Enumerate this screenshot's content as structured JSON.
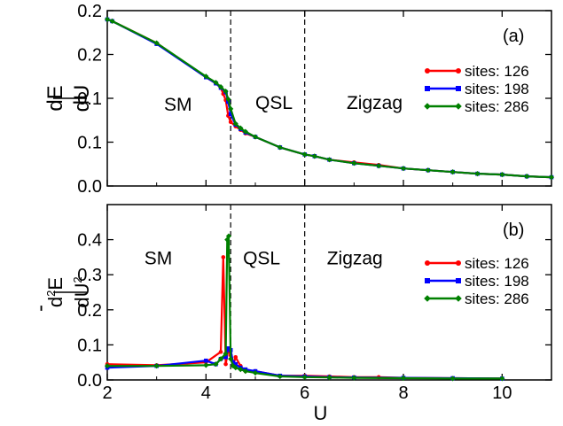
{
  "chart_data": [
    {
      "type": "line",
      "panel_label": "(a)",
      "ylabel_num": "dE",
      "ylabel_den": "dU",
      "xlim": [
        2,
        11
      ],
      "ylim": [
        0.0,
        0.2
      ],
      "yticks": [
        {
          "v": 0.0,
          "label": "0.0"
        },
        {
          "v": 0.05,
          "label": "0.1"
        },
        {
          "v": 0.1,
          "label": "0.1"
        },
        {
          "v": 0.15,
          "label": "0.2"
        },
        {
          "v": 0.2,
          "label": "0.2"
        }
      ],
      "vlines": [
        4.5,
        6.0
      ],
      "phase_labels": [
        {
          "text": "SM",
          "x": 3.15,
          "y": 0.086
        },
        {
          "text": "QSL",
          "x": 5.0,
          "y": 0.088
        },
        {
          "text": "Zigzag",
          "x": 6.85,
          "y": 0.088
        }
      ],
      "legend": "right",
      "series": [
        {
          "name": "sites: 126",
          "color": "#ff0000",
          "marker": "circle",
          "x": [
            2.0,
            2.1,
            3.0,
            4.0,
            4.2,
            4.3,
            4.35,
            4.4,
            4.45,
            4.5,
            4.6,
            4.7,
            4.8,
            5.0,
            5.5,
            6.0,
            6.2,
            6.5,
            7.0,
            7.5,
            8.0,
            8.5,
            9.0,
            9.5,
            10.0,
            10.5,
            11.0
          ],
          "y": [
            0.19,
            0.188,
            0.163,
            0.124,
            0.117,
            0.112,
            0.105,
            0.098,
            0.08,
            0.073,
            0.068,
            0.064,
            0.06,
            0.056,
            0.044,
            0.036,
            0.034,
            0.03,
            0.027,
            0.024,
            0.02,
            0.018,
            0.016,
            0.014,
            0.013,
            0.011,
            0.01
          ]
        },
        {
          "name": "sites: 198",
          "color": "#0000ff",
          "marker": "square",
          "x": [
            2.0,
            2.1,
            3.0,
            4.0,
            4.2,
            4.3,
            4.4,
            4.45,
            4.5,
            4.6,
            4.7,
            4.8,
            5.0,
            5.5,
            6.0,
            6.2,
            6.5,
            7.0,
            7.5,
            8.0,
            8.5,
            9.0,
            9.5,
            10.0,
            10.5,
            11.0
          ],
          "y": [
            0.19,
            0.188,
            0.162,
            0.124,
            0.117,
            0.112,
            0.107,
            0.096,
            0.082,
            0.07,
            0.065,
            0.061,
            0.056,
            0.044,
            0.036,
            0.034,
            0.03,
            0.026,
            0.023,
            0.02,
            0.018,
            0.016,
            0.014,
            0.013,
            0.011,
            0.01
          ]
        },
        {
          "name": "sites: 286",
          "color": "#008000",
          "marker": "diamond",
          "x": [
            2.0,
            2.1,
            3.0,
            4.0,
            4.2,
            4.3,
            4.4,
            4.45,
            4.5,
            4.6,
            4.7,
            4.8,
            5.0,
            5.5,
            6.0,
            6.2,
            6.5,
            7.0,
            7.5,
            8.0,
            8.5,
            9.0,
            9.5,
            10.0,
            10.5,
            11.0
          ],
          "y": [
            0.19,
            0.188,
            0.163,
            0.125,
            0.118,
            0.113,
            0.108,
            0.099,
            0.088,
            0.071,
            0.066,
            0.062,
            0.056,
            0.044,
            0.036,
            0.034,
            0.03,
            0.026,
            0.023,
            0.02,
            0.018,
            0.016,
            0.014,
            0.013,
            0.011,
            0.01
          ]
        }
      ]
    },
    {
      "type": "line",
      "panel_label": "(b)",
      "ylabel_prefix": "-",
      "ylabel_num": "d",
      "ylabel_num_sup": "2",
      "ylabel_num_tail": "E",
      "ylabel_den": "dU",
      "ylabel_den_sup": "2",
      "xlabel": "U",
      "xlim": [
        2,
        11
      ],
      "ylim": [
        0.0,
        0.5
      ],
      "xticks": [
        2,
        4,
        6,
        8,
        10
      ],
      "yticks": [
        {
          "v": 0.0,
          "label": "0.0"
        },
        {
          "v": 0.1,
          "label": "0.1"
        },
        {
          "v": 0.2,
          "label": "0.2"
        },
        {
          "v": 0.3,
          "label": "0.3"
        },
        {
          "v": 0.4,
          "label": "0.4"
        }
      ],
      "vlines": [
        4.5,
        6.0
      ],
      "phase_labels": [
        {
          "text": "SM",
          "x": 2.75,
          "y": 0.33
        },
        {
          "text": "QSL",
          "x": 4.75,
          "y": 0.33
        },
        {
          "text": "Zigzag",
          "x": 6.45,
          "y": 0.33
        }
      ],
      "legend": "right",
      "series": [
        {
          "name": "sites: 126",
          "color": "#ff0000",
          "marker": "circle",
          "x": [
            2.0,
            3.0,
            4.0,
            4.3,
            4.35,
            4.4,
            4.45,
            4.5,
            4.55,
            4.6,
            4.7,
            4.8,
            5.0,
            5.5,
            6.0,
            6.5,
            7.0,
            7.5,
            8.0,
            9.0,
            10.0
          ],
          "y": [
            0.045,
            0.042,
            0.05,
            0.08,
            0.35,
            0.045,
            0.085,
            0.07,
            0.04,
            0.065,
            0.04,
            0.025,
            0.025,
            0.012,
            0.012,
            0.01,
            0.008,
            0.008,
            0.006,
            0.005,
            0.004
          ]
        },
        {
          "name": "sites: 198",
          "color": "#0000ff",
          "marker": "square",
          "x": [
            2.0,
            3.0,
            4.0,
            4.2,
            4.3,
            4.4,
            4.45,
            4.5,
            4.55,
            4.6,
            4.7,
            4.8,
            5.0,
            5.5,
            6.0,
            6.5,
            7.0,
            8.0,
            9.0,
            10.0
          ],
          "y": [
            0.035,
            0.04,
            0.055,
            0.045,
            0.06,
            0.065,
            0.09,
            0.085,
            0.05,
            0.045,
            0.035,
            0.03,
            0.025,
            0.012,
            0.01,
            0.008,
            0.007,
            0.006,
            0.005,
            0.004
          ]
        },
        {
          "name": "sites: 286",
          "color": "#008000",
          "marker": "diamond",
          "x": [
            2.0,
            3.0,
            4.0,
            4.2,
            4.3,
            4.4,
            4.43,
            4.46,
            4.5,
            4.55,
            4.6,
            4.7,
            4.8,
            5.0,
            5.5,
            6.0,
            6.5,
            7.0,
            8.0,
            9.0,
            10.0
          ],
          "y": [
            0.04,
            0.04,
            0.042,
            0.045,
            0.06,
            0.075,
            0.4,
            0.41,
            0.06,
            0.04,
            0.035,
            0.03,
            0.025,
            0.02,
            0.01,
            0.008,
            0.007,
            0.006,
            0.005,
            0.004,
            0.004
          ]
        }
      ]
    }
  ]
}
